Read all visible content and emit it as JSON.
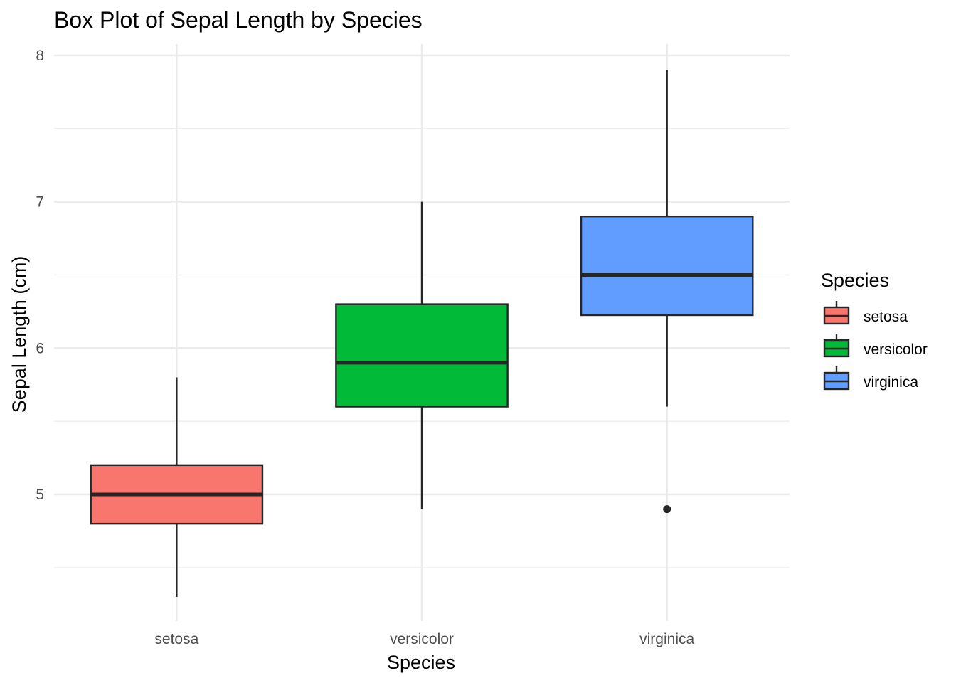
{
  "chart_data": {
    "type": "boxplot",
    "title": "Box Plot of Sepal Length by Species",
    "xlabel": "Species",
    "ylabel": "Sepal Length (cm)",
    "categories": [
      "setosa",
      "versicolor",
      "virginica"
    ],
    "ylim": [
      4.22,
      8.08
    ],
    "y_ticks": [
      5,
      6,
      7,
      8
    ],
    "y_tick_labels": [
      "5",
      "6",
      "7",
      "8"
    ],
    "grid": true,
    "legend": {
      "title": "Species",
      "position": "right",
      "entries": [
        "setosa",
        "versicolor",
        "virginica"
      ]
    },
    "boxes": [
      {
        "category": "setosa",
        "whisker_low": 4.3,
        "q1": 4.8,
        "median": 5.0,
        "q3": 5.2,
        "whisker_high": 5.8,
        "outliers": [],
        "color": "#F8766D"
      },
      {
        "category": "versicolor",
        "whisker_low": 4.9,
        "q1": 5.6,
        "median": 5.9,
        "q3": 6.3,
        "whisker_high": 7.0,
        "outliers": [],
        "color": "#00BA38"
      },
      {
        "category": "virginica",
        "whisker_low": 5.6,
        "q1": 6.225,
        "median": 6.5,
        "q3": 6.9,
        "whisker_high": 7.9,
        "outliers": [
          4.9
        ],
        "color": "#619CFF"
      }
    ]
  }
}
